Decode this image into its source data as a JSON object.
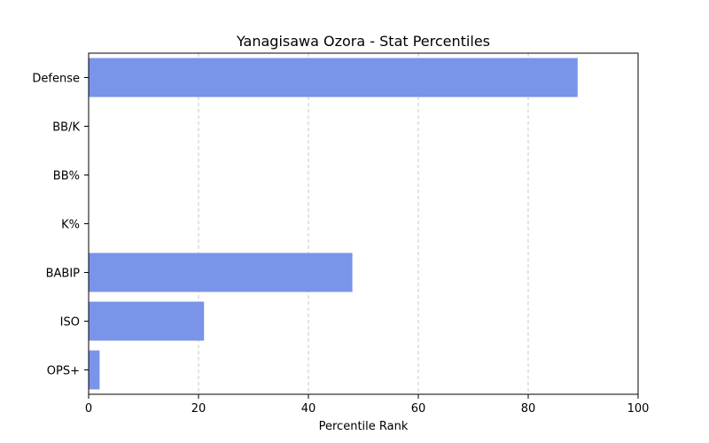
{
  "chart_data": {
    "type": "bar",
    "orientation": "horizontal",
    "title": "Yanagisawa Ozora - Stat Percentiles",
    "xlabel": "Percentile Rank",
    "ylabel": "",
    "categories": [
      "Defense",
      "BB/K",
      "BB%",
      "K%",
      "BABIP",
      "ISO",
      "OPS+"
    ],
    "values": [
      89,
      0,
      0,
      0,
      48,
      21,
      2
    ],
    "xlim": [
      0,
      100
    ],
    "xticks": [
      "0",
      "20",
      "40",
      "60",
      "80",
      "100"
    ],
    "grid": "x-dashed",
    "legend": "none",
    "colors": {
      "bar": "#7994e8",
      "grid": "#c8c8c8",
      "axis": "#000000"
    }
  }
}
